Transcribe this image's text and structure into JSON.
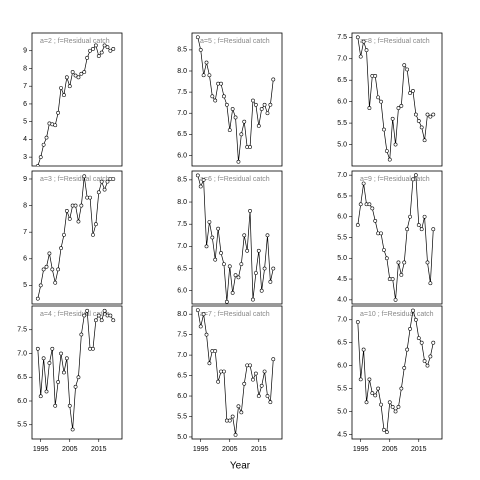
{
  "xlabel": "Year",
  "chart_data": [
    {
      "type": "line",
      "title": "a=2 ; f=Residual catch",
      "xlim": [
        1992,
        2023
      ],
      "ylim": [
        2.5,
        10
      ],
      "yticks": [
        3,
        4,
        5,
        6,
        7,
        8,
        9
      ],
      "x": [
        1994,
        1995,
        1996,
        1997,
        1998,
        1999,
        2000,
        2001,
        2002,
        2003,
        2004,
        2005,
        2006,
        2007,
        2008,
        2009,
        2010,
        2011,
        2012,
        2013,
        2014,
        2015,
        2016,
        2017,
        2018,
        2019,
        2020
      ],
      "values": [
        2.5,
        3.0,
        3.7,
        4.1,
        4.9,
        4.85,
        4.8,
        5.5,
        6.9,
        6.5,
        7.5,
        7.0,
        7.8,
        7.6,
        7.5,
        7.7,
        7.8,
        8.6,
        9.0,
        9.1,
        9.3,
        8.7,
        8.9,
        9.3,
        9.2,
        9.0,
        9.1
      ]
    },
    {
      "type": "line",
      "title": "a=5 ; f=Residual catch",
      "xlim": [
        1992,
        2023
      ],
      "ylim": [
        5.75,
        8.9
      ],
      "yticks": [
        {
          "value": 6,
          "label": "6.0"
        },
        6.5,
        {
          "value": 7,
          "label": "7.0"
        },
        7.5,
        {
          "value": 8,
          "label": "8.0"
        },
        8.5
      ],
      "x": [
        1994,
        1995,
        1996,
        1997,
        1998,
        1999,
        2000,
        2001,
        2002,
        2003,
        2004,
        2005,
        2006,
        2007,
        2008,
        2009,
        2010,
        2011,
        2012,
        2013,
        2014,
        2015,
        2016,
        2017,
        2018,
        2019,
        2020
      ],
      "values": [
        8.8,
        8.5,
        7.9,
        8.2,
        7.9,
        7.4,
        7.3,
        7.7,
        7.7,
        7.4,
        7.2,
        6.6,
        7.1,
        6.9,
        5.85,
        6.5,
        6.8,
        6.2,
        6.2,
        7.3,
        7.2,
        6.7,
        7.1,
        7.2,
        7.0,
        7.2,
        7.8
      ]
    },
    {
      "type": "line",
      "title": "a=8 ; f=Residual catch",
      "xlim": [
        1992,
        2023
      ],
      "ylim": [
        4.5,
        7.6
      ],
      "yticks": [
        {
          "value": 5,
          "label": "5.0"
        },
        5.5,
        {
          "value": 6,
          "label": "6.0"
        },
        6.5,
        {
          "value": 7,
          "label": "7.0"
        },
        7.5
      ],
      "x": [
        1994,
        1995,
        1996,
        1997,
        1998,
        1999,
        2000,
        2001,
        2002,
        2003,
        2004,
        2005,
        2006,
        2007,
        2008,
        2009,
        2010,
        2011,
        2012,
        2013,
        2014,
        2015,
        2016,
        2017,
        2018,
        2019,
        2020
      ],
      "values": [
        7.5,
        7.05,
        7.4,
        7.2,
        5.85,
        6.6,
        6.6,
        6.1,
        6.0,
        5.35,
        4.85,
        4.65,
        5.6,
        5.0,
        5.85,
        5.9,
        6.85,
        6.75,
        6.2,
        6.25,
        5.7,
        5.55,
        5.4,
        5.1,
        5.7,
        5.65,
        5.7
      ]
    },
    {
      "type": "line",
      "title": "a=3 ; f=Residual catch",
      "xlim": [
        1992,
        2023
      ],
      "ylim": [
        4.3,
        9.3
      ],
      "yticks": [
        5,
        6,
        7,
        8,
        9
      ],
      "x": [
        1994,
        1995,
        1996,
        1997,
        1998,
        1999,
        2000,
        2001,
        2002,
        2003,
        2004,
        2005,
        2006,
        2007,
        2008,
        2009,
        2010,
        2011,
        2012,
        2013,
        2014,
        2015,
        2016,
        2017,
        2018,
        2019,
        2020
      ],
      "values": [
        4.5,
        5.0,
        5.6,
        5.7,
        6.2,
        5.6,
        5.1,
        5.6,
        6.4,
        6.9,
        7.8,
        7.5,
        8.0,
        8.0,
        7.4,
        8.0,
        9.1,
        8.3,
        8.3,
        6.9,
        7.3,
        8.5,
        8.9,
        8.6,
        8.9,
        9.0,
        9.0
      ]
    },
    {
      "type": "line",
      "title": "a=6 ; f=Residual catch",
      "xlim": [
        1992,
        2023
      ],
      "ylim": [
        5.7,
        8.7
      ],
      "yticks": [
        {
          "value": 6,
          "label": "6.0"
        },
        6.5,
        {
          "value": 7,
          "label": "7.0"
        },
        7.5,
        {
          "value": 8,
          "label": "8.0"
        },
        8.5
      ],
      "x": [
        1994,
        1995,
        1996,
        1997,
        1998,
        1999,
        2000,
        2001,
        2002,
        2003,
        2004,
        2005,
        2006,
        2007,
        2008,
        2009,
        2010,
        2011,
        2012,
        2013,
        2014,
        2015,
        2016,
        2017,
        2018,
        2019,
        2020
      ],
      "values": [
        8.6,
        8.35,
        8.5,
        7.0,
        7.55,
        7.2,
        6.7,
        7.4,
        6.85,
        6.6,
        5.75,
        6.55,
        5.95,
        6.35,
        6.3,
        6.6,
        7.25,
        6.9,
        7.8,
        5.8,
        6.4,
        6.9,
        6.0,
        6.5,
        7.25,
        6.2,
        6.5
      ]
    },
    {
      "type": "line",
      "title": "a=9 ; f=Residual catch",
      "xlim": [
        1992,
        2023
      ],
      "ylim": [
        3.9,
        7.1
      ],
      "yticks": [
        {
          "value": 4,
          "label": "4.0"
        },
        4.5,
        {
          "value": 5,
          "label": "5.0"
        },
        5.5,
        {
          "value": 6,
          "label": "6.0"
        },
        6.5,
        {
          "value": 7,
          "label": "7.0"
        }
      ],
      "x": [
        1994,
        1995,
        1996,
        1997,
        1998,
        1999,
        2000,
        2001,
        2002,
        2003,
        2004,
        2005,
        2006,
        2007,
        2008,
        2009,
        2010,
        2011,
        2012,
        2013,
        2014,
        2015,
        2016,
        2017,
        2018,
        2019,
        2020
      ],
      "values": [
        5.8,
        6.3,
        6.8,
        6.3,
        6.3,
        6.2,
        5.9,
        5.6,
        5.6,
        5.2,
        5.0,
        4.5,
        4.5,
        4.0,
        4.9,
        4.6,
        4.9,
        5.7,
        6.0,
        6.9,
        7.0,
        5.8,
        5.7,
        6.0,
        4.9,
        4.4,
        5.7
      ]
    },
    {
      "type": "line",
      "title": "a=4 ; f=Residual catch",
      "xlim": [
        1992,
        2023
      ],
      "ylim": [
        5.2,
        8.0
      ],
      "yticks": [
        5.5,
        {
          "value": 6,
          "label": "6.0"
        },
        6.5,
        {
          "value": 7,
          "label": "7.0"
        },
        7.5
      ],
      "xticks": [
        1995,
        2005,
        2015
      ],
      "x": [
        1994,
        1995,
        1996,
        1997,
        1998,
        1999,
        2000,
        2001,
        2002,
        2003,
        2004,
        2005,
        2006,
        2007,
        2008,
        2009,
        2010,
        2011,
        2012,
        2013,
        2014,
        2015,
        2016,
        2017,
        2018,
        2019,
        2020
      ],
      "values": [
        7.1,
        6.1,
        6.9,
        6.2,
        6.8,
        7.1,
        5.9,
        6.4,
        7.0,
        6.6,
        6.9,
        5.9,
        5.4,
        6.3,
        6.5,
        7.4,
        7.8,
        7.9,
        7.1,
        7.1,
        7.7,
        7.8,
        7.7,
        7.9,
        7.8,
        7.8,
        7.7
      ]
    },
    {
      "type": "line",
      "title": "a=7 ; f=Residual catch",
      "xlim": [
        1992,
        2023
      ],
      "ylim": [
        4.95,
        8.2
      ],
      "yticks": [
        {
          "value": 5,
          "label": "5.0"
        },
        5.5,
        {
          "value": 6,
          "label": "6.0"
        },
        6.5,
        {
          "value": 7,
          "label": "7.0"
        },
        7.5,
        {
          "value": 8,
          "label": "8.0"
        }
      ],
      "xticks": [
        1995,
        2005,
        2015
      ],
      "x": [
        1994,
        1995,
        1996,
        1997,
        1998,
        1999,
        2000,
        2001,
        2002,
        2003,
        2004,
        2005,
        2006,
        2007,
        2008,
        2009,
        2010,
        2011,
        2012,
        2013,
        2014,
        2015,
        2016,
        2017,
        2018,
        2019,
        2020
      ],
      "values": [
        8.1,
        7.7,
        8.0,
        7.5,
        6.8,
        7.1,
        7.1,
        6.35,
        6.6,
        6.6,
        5.4,
        5.4,
        5.5,
        5.05,
        5.75,
        5.6,
        6.3,
        6.75,
        6.75,
        6.4,
        6.55,
        6.0,
        6.25,
        6.6,
        6.0,
        5.85,
        6.9
      ]
    },
    {
      "type": "line",
      "title": "a=10 ; f=Residual catch",
      "xlim": [
        1992,
        2023
      ],
      "ylim": [
        4.4,
        7.3
      ],
      "yticks": [
        4.5,
        {
          "value": 5,
          "label": "5.0"
        },
        5.5,
        {
          "value": 6,
          "label": "6.0"
        },
        6.5,
        {
          "value": 7,
          "label": "7.0"
        }
      ],
      "xticks": [
        1995,
        2005,
        2015
      ],
      "x": [
        1994,
        1995,
        1996,
        1997,
        1998,
        1999,
        2000,
        2001,
        2002,
        2003,
        2004,
        2005,
        2006,
        2007,
        2008,
        2009,
        2010,
        2011,
        2012,
        2013,
        2014,
        2015,
        2016,
        2017,
        2018,
        2019,
        2020
      ],
      "values": [
        6.95,
        5.7,
        6.35,
        5.2,
        5.7,
        5.4,
        5.35,
        5.5,
        5.15,
        4.6,
        4.55,
        5.2,
        5.1,
        5.0,
        5.1,
        5.5,
        5.95,
        6.35,
        6.8,
        7.2,
        7.0,
        6.6,
        6.5,
        6.1,
        6.0,
        6.2,
        6.5
      ]
    }
  ]
}
